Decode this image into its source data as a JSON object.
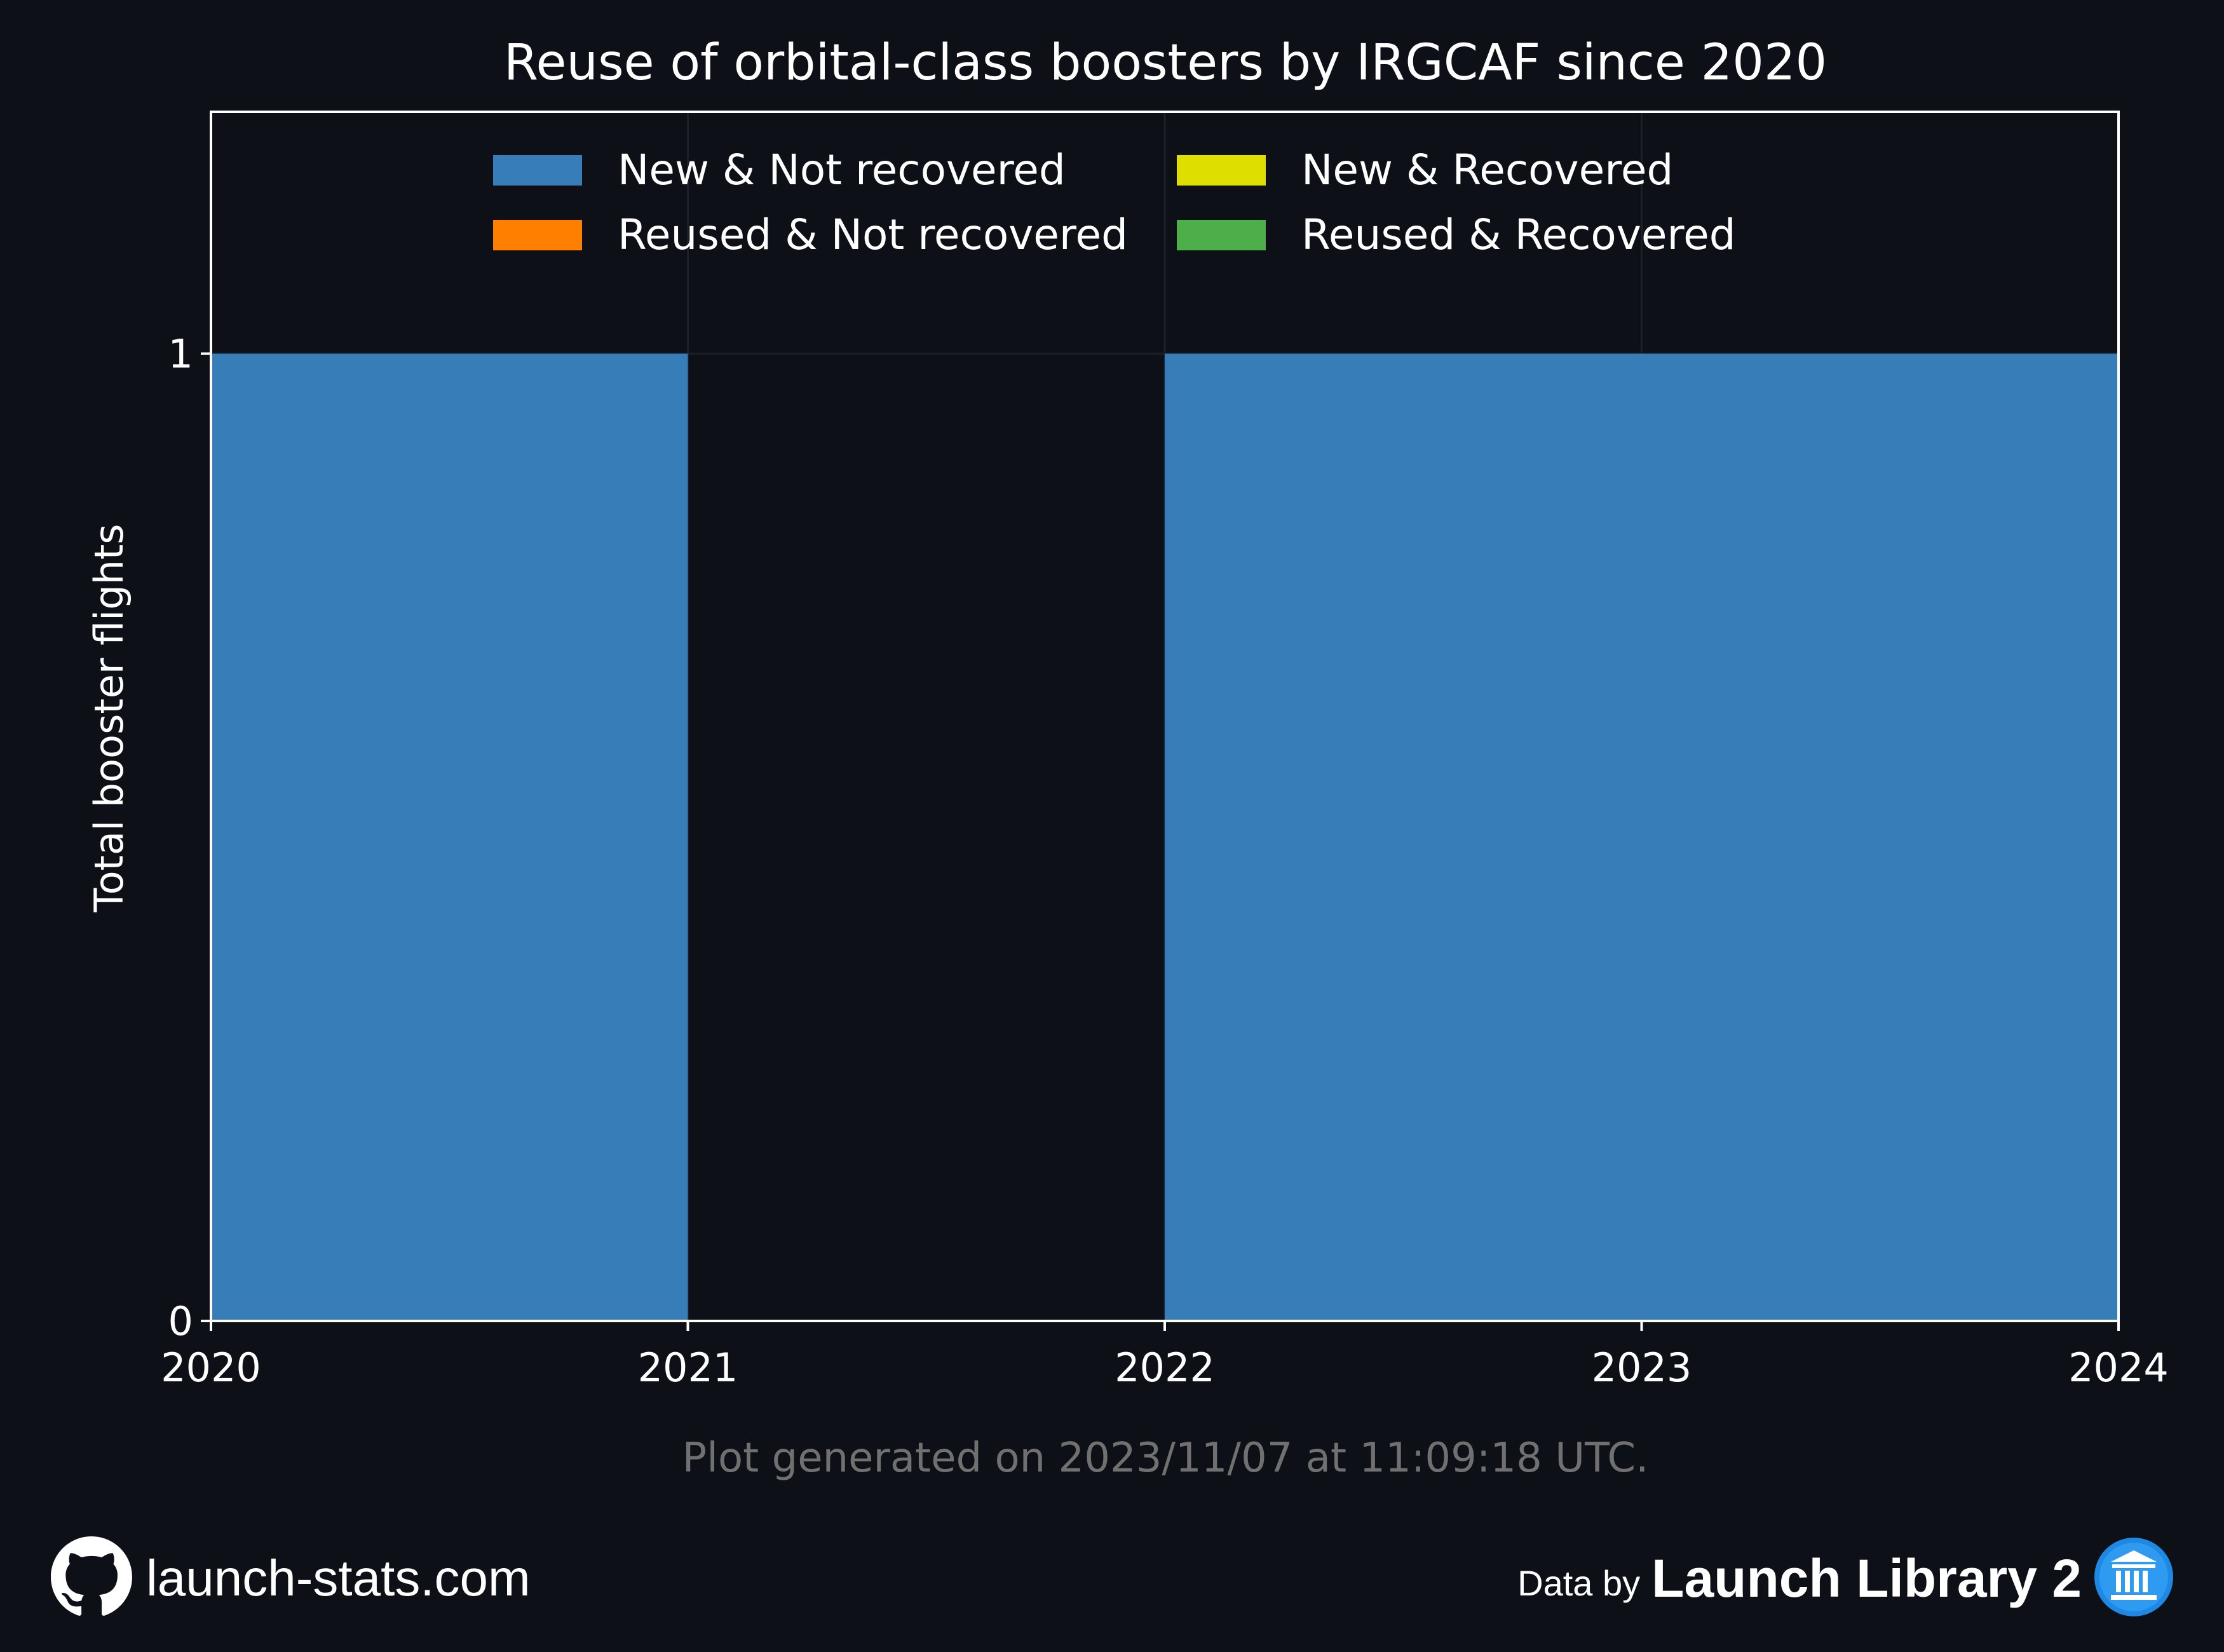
{
  "colors": {
    "background": "#0d1017",
    "new_not_recovered": "#377eb8",
    "new_recovered": "#dede00",
    "reused_not_recovered": "#ff7f00",
    "reused_recovered": "#4daf4a",
    "footer_gray": "#707070",
    "axis": "#ffffff"
  },
  "chart_data": {
    "type": "area",
    "title": "Reuse of orbital-class boosters by IRGCAF since 2020",
    "ylabel": "Total booster flights",
    "xlabel": "",
    "x_ticks": [
      "2020",
      "2021",
      "2022",
      "2023",
      "2024"
    ],
    "y_ticks": [
      "0",
      "1"
    ],
    "xlim": [
      2020,
      2024
    ],
    "ylim": [
      0,
      1.25
    ],
    "step": "post",
    "x": [
      2020,
      2021,
      2022,
      2023
    ],
    "series": [
      {
        "name": "New & Not recovered",
        "values": [
          1,
          0,
          1,
          1
        ],
        "color": "#377eb8"
      },
      {
        "name": "New & Recovered",
        "values": [
          0,
          0,
          0,
          0
        ],
        "color": "#dede00"
      },
      {
        "name": "Reused & Not recovered",
        "values": [
          0,
          0,
          0,
          0
        ],
        "color": "#ff7f00"
      },
      {
        "name": "Reused & Recovered",
        "values": [
          0,
          0,
          0,
          0
        ],
        "color": "#4daf4a"
      }
    ],
    "legend": {
      "placement": "top",
      "columns": 2,
      "order": [
        "New & Not recovered",
        "Reused & Not recovered",
        "New & Recovered",
        "Reused & Recovered"
      ]
    },
    "grid": true
  },
  "footer": {
    "generated": "Plot generated on 2023/11/07 at 11:09:18 UTC.",
    "site": "launch-stats.com",
    "data_by": "Data by",
    "source": "Launch Library 2",
    "site_icon": "github-icon",
    "source_icon": "library-icon"
  }
}
